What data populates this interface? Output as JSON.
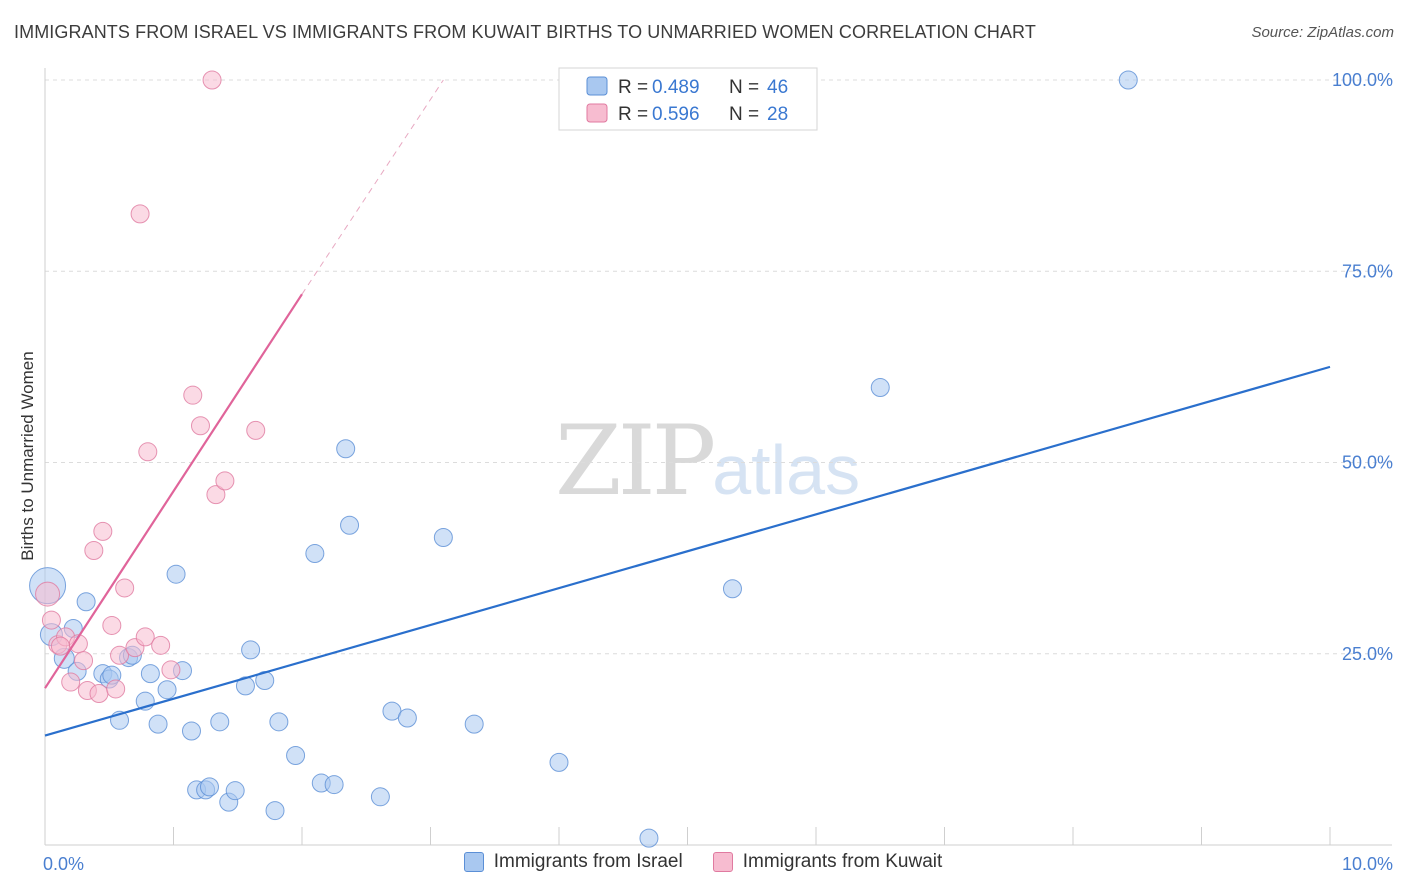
{
  "title": "IMMIGRANTS FROM ISRAEL VS IMMIGRANTS FROM KUWAIT BIRTHS TO UNMARRIED WOMEN CORRELATION CHART",
  "source": "Source: ZipAtlas.com",
  "watermark": {
    "zip": "ZIP",
    "atlas": "atlas"
  },
  "chart_data": {
    "type": "scatter",
    "title": "IMMIGRANTS FROM ISRAEL VS IMMIGRANTS FROM KUWAIT BIRTHS TO UNMARRIED WOMEN CORRELATION CHART",
    "xlabel": "",
    "ylabel": "Births to Unmarried Women",
    "xlim": [
      0,
      10
    ],
    "ylim": [
      0,
      100
    ],
    "x_unit": "%",
    "y_unit": "%",
    "x_tick_labels": [
      "0.0%",
      "10.0%"
    ],
    "y_tick_labels": [
      "100.0%",
      "75.0%",
      "50.0%",
      "25.0%"
    ],
    "y_ticks": [
      100,
      75,
      50,
      25
    ],
    "grid": true,
    "legend_position": "top-center",
    "series": [
      {
        "name": "Immigrants from Israel",
        "color": "#a9c8f0",
        "stroke": "#5b8fd6",
        "line_color": "#2a6fcc",
        "r_label": "R = ",
        "r": "0.489",
        "n_label": "N = ",
        "n": "46",
        "trend": {
          "x0": 0,
          "y0": 14.3,
          "x1": 10,
          "y1": 62.5
        },
        "points": [
          [
            0.02,
            33.9,
            18
          ],
          [
            0.05,
            27.5,
            11
          ],
          [
            0.15,
            24.4,
            10
          ],
          [
            0.22,
            28.3,
            9
          ],
          [
            0.32,
            31.8,
            9
          ],
          [
            0.25,
            22.7,
            9
          ],
          [
            0.45,
            22.4,
            9
          ],
          [
            0.5,
            21.7,
            9
          ],
          [
            0.52,
            22.2,
            9
          ],
          [
            0.65,
            24.5,
            9
          ],
          [
            0.68,
            24.8,
            9
          ],
          [
            0.78,
            18.8,
            9
          ],
          [
            0.82,
            22.4,
            9
          ],
          [
            0.95,
            20.3,
            9
          ],
          [
            1.02,
            35.4,
            9
          ],
          [
            1.07,
            22.8,
            9
          ],
          [
            0.58,
            16.3,
            9
          ],
          [
            0.88,
            15.8,
            9
          ],
          [
            1.14,
            14.9,
            9
          ],
          [
            1.36,
            16.1,
            9
          ],
          [
            1.56,
            20.8,
            9
          ],
          [
            1.6,
            25.5,
            9
          ],
          [
            1.71,
            21.5,
            9
          ],
          [
            1.82,
            16.1,
            9
          ],
          [
            1.18,
            7.2,
            9
          ],
          [
            1.25,
            7.2,
            9
          ],
          [
            1.28,
            7.6,
            9
          ],
          [
            1.43,
            5.6,
            9
          ],
          [
            1.48,
            7.1,
            9
          ],
          [
            1.79,
            4.5,
            9
          ],
          [
            1.95,
            11.7,
            9
          ],
          [
            2.1,
            38.1,
            9
          ],
          [
            2.15,
            8.1,
            9
          ],
          [
            2.25,
            7.9,
            9
          ],
          [
            2.34,
            51.8,
            9
          ],
          [
            2.37,
            41.8,
            9
          ],
          [
            2.61,
            6.3,
            9
          ],
          [
            2.7,
            17.5,
            9
          ],
          [
            2.82,
            16.6,
            9
          ],
          [
            3.1,
            40.2,
            9
          ],
          [
            3.34,
            15.8,
            9
          ],
          [
            4.0,
            10.8,
            9
          ],
          [
            4.7,
            0.9,
            9
          ],
          [
            5.35,
            33.5,
            9
          ],
          [
            6.5,
            59.8,
            9
          ],
          [
            8.43,
            100.0,
            9
          ]
        ]
      },
      {
        "name": "Immigrants from Kuwait",
        "color": "#f7bcd0",
        "stroke": "#e07aa0",
        "line_color": "#e0649a",
        "r_label": "R = ",
        "r": "0.596",
        "n_label": "N = ",
        "n": "28",
        "trend": {
          "x0": 0,
          "y0": 20.5,
          "x1": 2.0,
          "y1": 72.0
        },
        "trend_ext": {
          "x0": 2.0,
          "y0": 72.0,
          "x1": 3.1,
          "y1": 100.0
        },
        "points": [
          [
            0.02,
            32.8,
            12
          ],
          [
            0.05,
            29.4,
            9
          ],
          [
            0.1,
            26.2,
            9
          ],
          [
            0.16,
            27.2,
            9
          ],
          [
            0.2,
            21.3,
            9
          ],
          [
            0.26,
            26.3,
            9
          ],
          [
            0.3,
            24.1,
            9
          ],
          [
            0.33,
            20.2,
            9
          ],
          [
            0.38,
            38.5,
            9
          ],
          [
            0.42,
            19.8,
            9
          ],
          [
            0.45,
            41.0,
            9
          ],
          [
            0.52,
            28.7,
            9
          ],
          [
            0.55,
            20.4,
            9
          ],
          [
            0.58,
            24.8,
            9
          ],
          [
            0.62,
            33.6,
            9
          ],
          [
            0.7,
            25.8,
            9
          ],
          [
            0.74,
            82.5,
            9
          ],
          [
            0.78,
            27.2,
            9
          ],
          [
            0.8,
            51.4,
            9
          ],
          [
            0.9,
            26.1,
            9
          ],
          [
            0.98,
            22.9,
            9
          ],
          [
            1.15,
            58.8,
            9
          ],
          [
            1.21,
            54.8,
            9
          ],
          [
            1.3,
            100.0,
            9
          ],
          [
            1.33,
            45.8,
            9
          ],
          [
            1.4,
            47.6,
            9
          ],
          [
            1.64,
            54.2,
            9
          ],
          [
            0.12,
            26.0,
            9
          ]
        ]
      }
    ]
  }
}
